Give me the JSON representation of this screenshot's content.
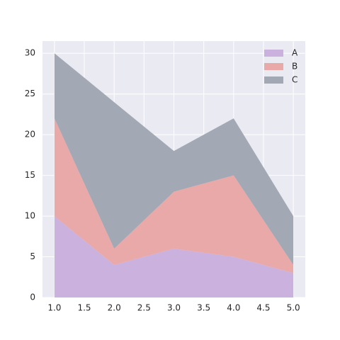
{
  "chart_data": {
    "type": "stacked-area",
    "x": [
      1,
      2,
      3,
      4,
      5
    ],
    "series": [
      {
        "name": "A",
        "color": "#cbb1de",
        "values": [
          10,
          4,
          6,
          5,
          3
        ]
      },
      {
        "name": "B",
        "color": "#e8a9a8",
        "values": [
          12,
          2,
          7,
          10,
          1
        ]
      },
      {
        "name": "C",
        "color": "#a2a8b4",
        "values": [
          8,
          18,
          5,
          7,
          6
        ]
      }
    ],
    "xlim": [
      0.8,
      5.2
    ],
    "ylim": [
      0,
      31.5
    ],
    "xticks": [
      {
        "value": 1,
        "label": "1.0"
      },
      {
        "value": 1.5,
        "label": "1.5"
      },
      {
        "value": 2,
        "label": "2.0"
      },
      {
        "value": 2.5,
        "label": "2.5"
      },
      {
        "value": 3,
        "label": "3.0"
      },
      {
        "value": 3.5,
        "label": "3.5"
      },
      {
        "value": 4,
        "label": "4.0"
      },
      {
        "value": 4.5,
        "label": "4.5"
      },
      {
        "value": 5,
        "label": "5.0"
      }
    ],
    "yticks": [
      0,
      5,
      10,
      15,
      20,
      25,
      30
    ],
    "grid": true,
    "legend": "upper right"
  }
}
